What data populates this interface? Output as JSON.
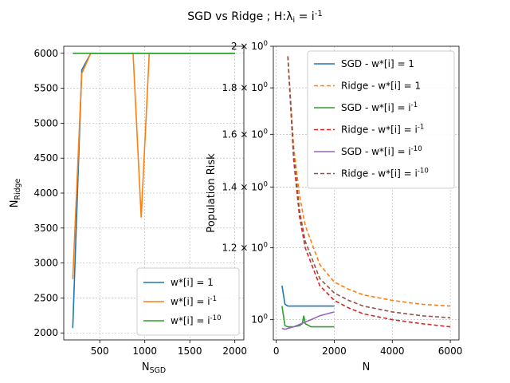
{
  "title": "SGD vs Ridge ; H:λ_i = i^{-1}",
  "chart_data": [
    {
      "type": "line",
      "xlabel": "N_SGD",
      "ylabel": "N_Ridge",
      "xlim": [
        100,
        2100
      ],
      "ylim": [
        1900,
        6100
      ],
      "xticks": [
        "500",
        "1000",
        "1500",
        "2000"
      ],
      "yticks": [
        "2000",
        "2500",
        "3000",
        "3500",
        "4000",
        "4500",
        "5000",
        "5500",
        "6000"
      ],
      "grid": true,
      "legend_position": "lower-right",
      "series": [
        {
          "name": "w*[i] = 1",
          "color": "#1f77b4",
          "style": "solid",
          "x": [
            200,
            300,
            400,
            500,
            1000,
            2000
          ],
          "y": [
            2070,
            5760,
            6000,
            6000,
            6000,
            6000
          ]
        },
        {
          "name": "w*[i] = i^{-1}",
          "color": "#ff7f0e",
          "style": "solid",
          "x": [
            200,
            300,
            400,
            500,
            870,
            960,
            1050,
            1500,
            2000
          ],
          "y": [
            2770,
            5710,
            6000,
            6000,
            6000,
            3650,
            6000,
            6000,
            6000
          ]
        },
        {
          "name": "w*[i] = i^{-10}",
          "color": "#2ca02c",
          "style": "solid",
          "x": [
            200,
            500,
            1000,
            1500,
            2000
          ],
          "y": [
            6000,
            6000,
            6000,
            6000,
            6000
          ]
        }
      ]
    },
    {
      "type": "line",
      "xlabel": "N",
      "ylabel": "Population Risk",
      "xscale": "linear",
      "yscale": "log",
      "xlim": [
        -100,
        6300
      ],
      "ylim": [
        0.95,
        2.0
      ],
      "xticks": [
        "0",
        "2000",
        "4000",
        "6000"
      ],
      "yticks_log": [
        {
          "value": 1.0,
          "label": "10^0"
        },
        {
          "value": 1.2,
          "label": "1.2 × 10^0"
        },
        {
          "value": 1.4,
          "label": "1.4 × 10^0"
        },
        {
          "value": 1.6,
          "label": "1.6 × 10^0"
        },
        {
          "value": 1.8,
          "label": "1.8 × 10^0"
        },
        {
          "value": 2.0,
          "label": "2 × 10^0"
        }
      ],
      "grid": true,
      "legend_position": "top-right",
      "series": [
        {
          "name": "SGD - w*[i] = 1",
          "color": "#1f77b4",
          "style": "solid",
          "x": [
            200,
            300,
            400,
            600,
            1000,
            1500,
            2000
          ],
          "y": [
            1.09,
            1.04,
            1.035,
            1.035,
            1.035,
            1.035,
            1.035
          ]
        },
        {
          "name": "Ridge - w*[i] = 1",
          "color": "#ff7f0e",
          "style": "dashed",
          "x": [
            400,
            600,
            800,
            1000,
            1500,
            2000,
            2500,
            3000,
            4000,
            5000,
            6000
          ],
          "y": [
            1.95,
            1.55,
            1.37,
            1.27,
            1.15,
            1.1,
            1.08,
            1.065,
            1.05,
            1.04,
            1.035
          ]
        },
        {
          "name": "SGD - w*[i] = i^{-1}",
          "color": "#2ca02c",
          "style": "solid",
          "x": [
            200,
            300,
            400,
            600,
            800,
            900,
            950,
            1000,
            1200,
            1500,
            2000
          ],
          "y": [
            1.035,
            0.985,
            0.982,
            0.982,
            0.985,
            0.99,
            1.01,
            0.99,
            0.982,
            0.982,
            0.982
          ]
        },
        {
          "name": "Ridge - w*[i] = i^{-1}",
          "color": "#d62728",
          "style": "dashed",
          "x": [
            400,
            600,
            800,
            1000,
            1500,
            2000,
            2500,
            3000,
            4000,
            5000,
            6000
          ],
          "y": [
            1.95,
            1.5,
            1.3,
            1.2,
            1.09,
            1.05,
            1.03,
            1.015,
            1.0,
            0.99,
            0.982
          ]
        },
        {
          "name": "SGD - w*[i] = i^{-10}",
          "color": "#9467bd",
          "style": "solid",
          "x": [
            200,
            300,
            400,
            600,
            800,
            1000,
            1200,
            1500,
            2000
          ],
          "y": [
            0.978,
            0.976,
            0.978,
            0.982,
            0.988,
            0.994,
            1.0,
            1.01,
            1.02
          ]
        },
        {
          "name": "Ridge - w*[i] = i^{-10}",
          "color": "#8c564b",
          "style": "dashed",
          "x": [
            400,
            600,
            800,
            1000,
            1500,
            2000,
            2500,
            3000,
            4000,
            5000,
            6000
          ],
          "y": [
            1.95,
            1.52,
            1.32,
            1.22,
            1.11,
            1.07,
            1.05,
            1.035,
            1.02,
            1.01,
            1.005
          ]
        }
      ]
    }
  ]
}
